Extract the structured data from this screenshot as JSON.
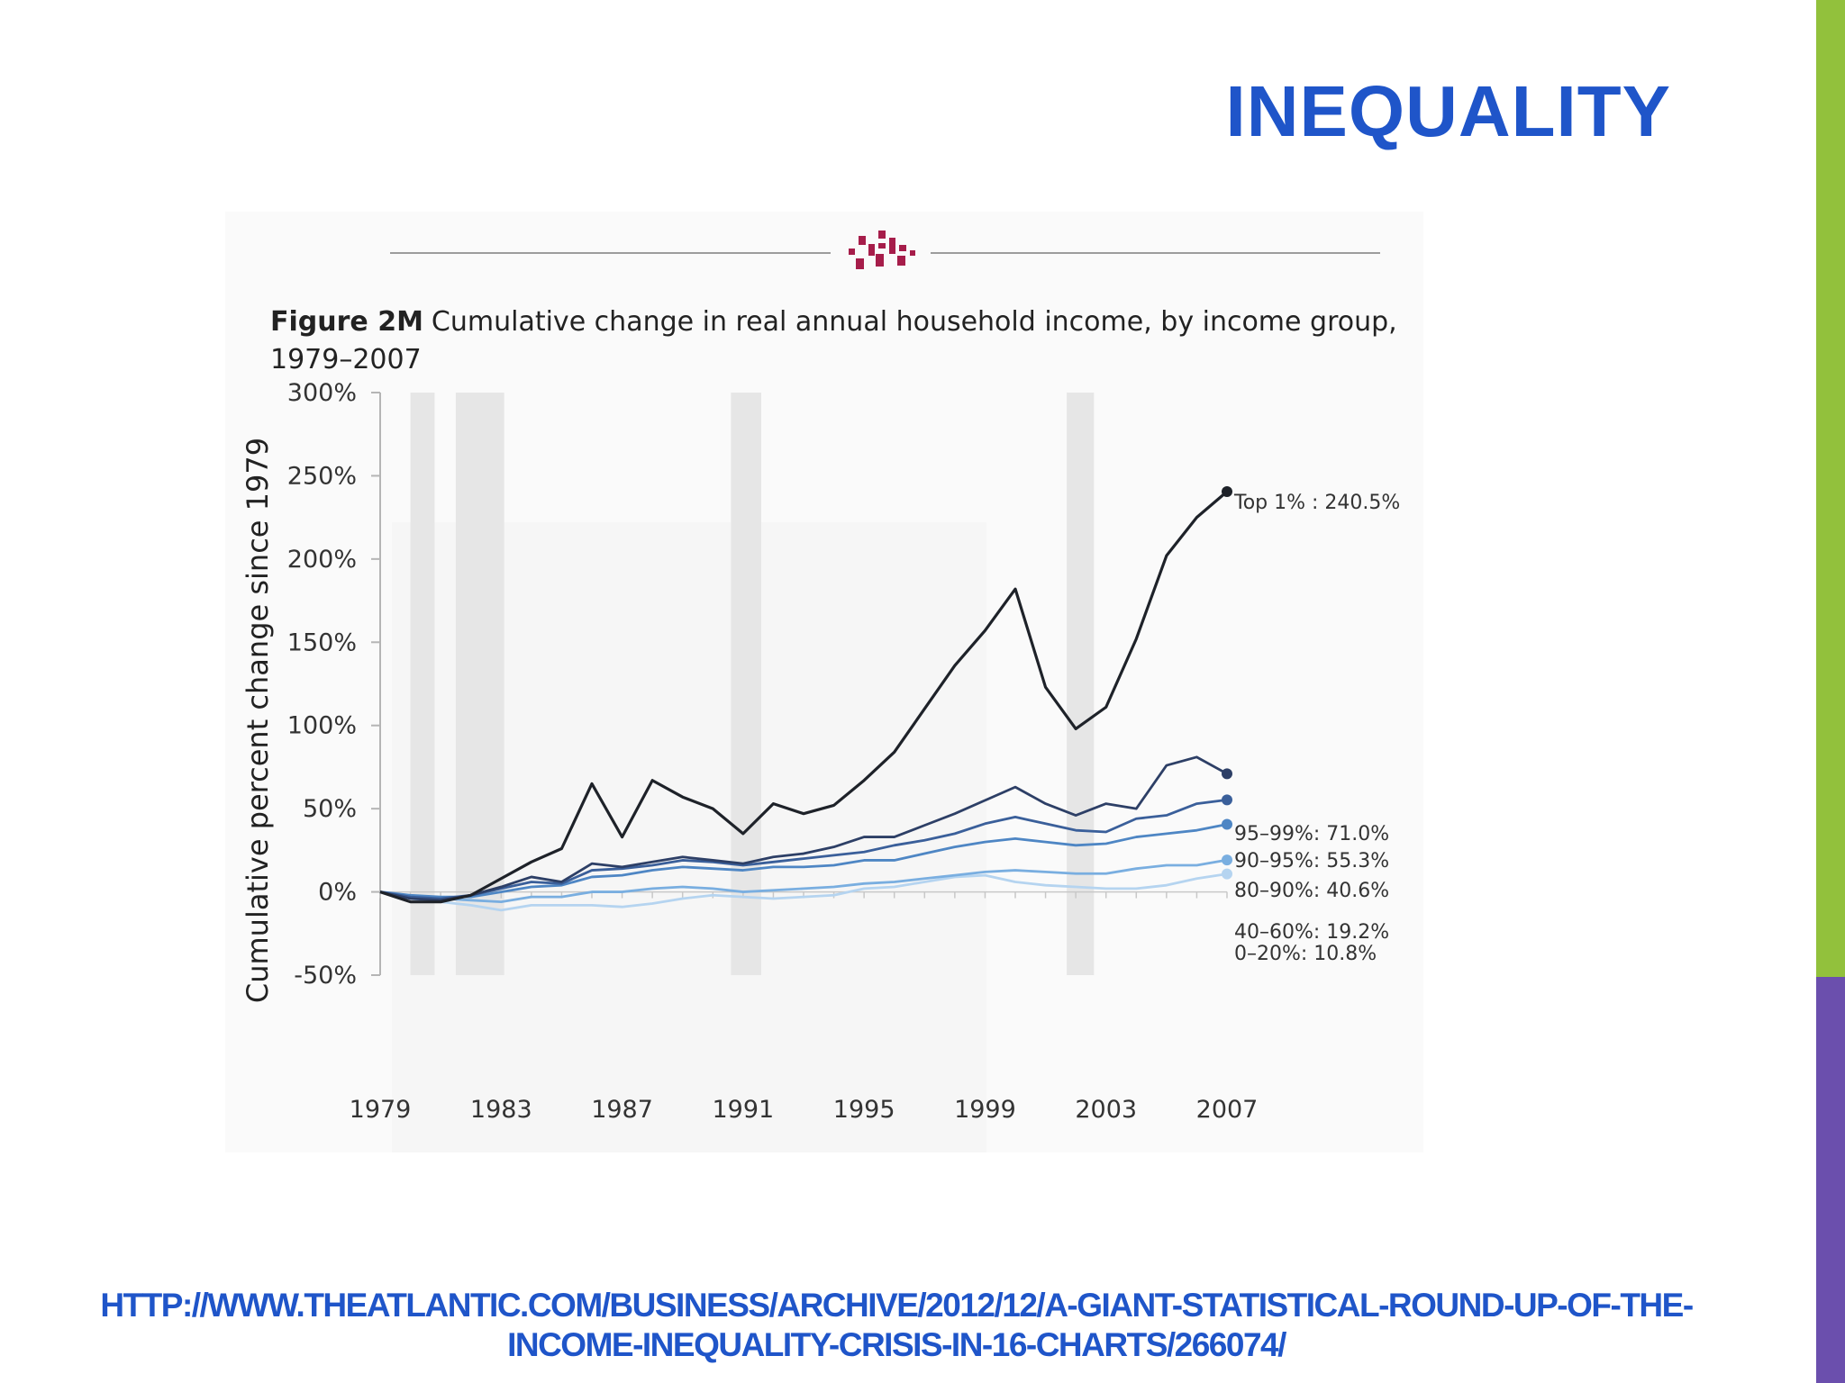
{
  "slide": {
    "title": "INEQUALITY",
    "link": "HTTP://WWW.THEATLANTIC.COM/BUSINESS/ARCHIVE/2012/12/A-GIANT-STATISTICAL-ROUND-UP-OF-THE-INCOME-INEQUALITY-CRISIS-IN-16-CHARTS/266074/",
    "colors": {
      "title": "#1f55c9",
      "accent_green": "#92c13c",
      "accent_purple": "#6b4fad"
    }
  },
  "chart_data": {
    "type": "line",
    "figure_label": "Figure 2M",
    "title_line1": "Cumulative change in real annual household income, by income group,",
    "title_line2": "1979–2007",
    "ylabel": "Cumulative percent change since 1979",
    "ylim": [
      -50,
      300
    ],
    "xlim": [
      1979,
      2007
    ],
    "yticks": [
      "300%",
      "250%",
      "200%",
      "150%",
      "100%",
      "50%",
      "0%",
      "-50%"
    ],
    "yticks_values": [
      300,
      250,
      200,
      150,
      100,
      50,
      0,
      -50
    ],
    "xticks": [
      "1979",
      "1983",
      "1987",
      "1991",
      "1995",
      "1999",
      "2003",
      "2007"
    ],
    "xticks_values": [
      1979,
      1983,
      1987,
      1991,
      1995,
      1999,
      2003,
      2007
    ],
    "recession_bands": [
      [
        1980,
        1980.8
      ],
      [
        1981.5,
        1983.1
      ],
      [
        1990.6,
        1991.6
      ],
      [
        1981.5,
        1983.1
      ],
      [
        2001.7,
        2002.6
      ]
    ],
    "x": [
      1979,
      1980,
      1981,
      1982,
      1983,
      1984,
      1985,
      1986,
      1987,
      1988,
      1989,
      1990,
      1991,
      1992,
      1993,
      1994,
      1995,
      1996,
      1997,
      1998,
      1999,
      2000,
      2001,
      2002,
      2003,
      2004,
      2005,
      2006,
      2007
    ],
    "series": [
      {
        "name": "Top 1%",
        "end_label": "Top 1% : 240.5%",
        "color": "#1e2229",
        "values": [
          0,
          -6,
          -6,
          -2,
          8,
          18,
          26,
          65,
          33,
          67,
          57,
          50,
          35,
          53,
          47,
          52,
          67,
          84,
          110,
          136,
          157,
          182,
          123,
          98,
          111,
          152,
          202,
          225,
          240.5
        ]
      },
      {
        "name": "95–99%",
        "end_label": "95–99%: 71.0%",
        "color": "#2d3f66",
        "values": [
          0,
          -4,
          -5,
          -2,
          3,
          9,
          6,
          17,
          15,
          18,
          21,
          19,
          17,
          21,
          23,
          27,
          33,
          33,
          40,
          47,
          55,
          63,
          53,
          46,
          53,
          50,
          76,
          81,
          71
        ]
      },
      {
        "name": "90–95%",
        "end_label": "90–95%: 55.3%",
        "color": "#3a5f9a",
        "values": [
          0,
          -3,
          -4,
          -2,
          2,
          6,
          5,
          13,
          14,
          16,
          19,
          18,
          16,
          18,
          20,
          22,
          24,
          28,
          31,
          35,
          41,
          45,
          41,
          37,
          36,
          44,
          46,
          53,
          55.3
        ]
      },
      {
        "name": "80–90%",
        "end_label": "80–90%: 40.6%",
        "color": "#4e86c4",
        "values": [
          0,
          -2,
          -3,
          -3,
          0,
          3,
          4,
          9,
          10,
          13,
          15,
          14,
          13,
          15,
          15,
          16,
          19,
          19,
          23,
          27,
          30,
          32,
          30,
          28,
          29,
          33,
          35,
          37,
          40.6
        ]
      },
      {
        "name": "40–60%",
        "end_label": "40–60%: 19.2%",
        "color": "#79aee0",
        "values": [
          0,
          -3,
          -4,
          -5,
          -6,
          -3,
          -3,
          0,
          0,
          2,
          3,
          2,
          0,
          1,
          2,
          3,
          5,
          6,
          8,
          10,
          12,
          13,
          12,
          11,
          11,
          14,
          16,
          16,
          19.2
        ]
      },
      {
        "name": "0–20%",
        "end_label": "0–20%: 10.8%",
        "color": "#b5d4f0",
        "values": [
          0,
          -4,
          -6,
          -8,
          -11,
          -8,
          -8,
          -8,
          -9,
          -7,
          -4,
          -2,
          -3,
          -4,
          -3,
          -2,
          2,
          3,
          6,
          9,
          10,
          6,
          4,
          3,
          2,
          2,
          4,
          8,
          10.8
        ]
      }
    ],
    "grid": false,
    "legend": "end-of-line labels"
  }
}
